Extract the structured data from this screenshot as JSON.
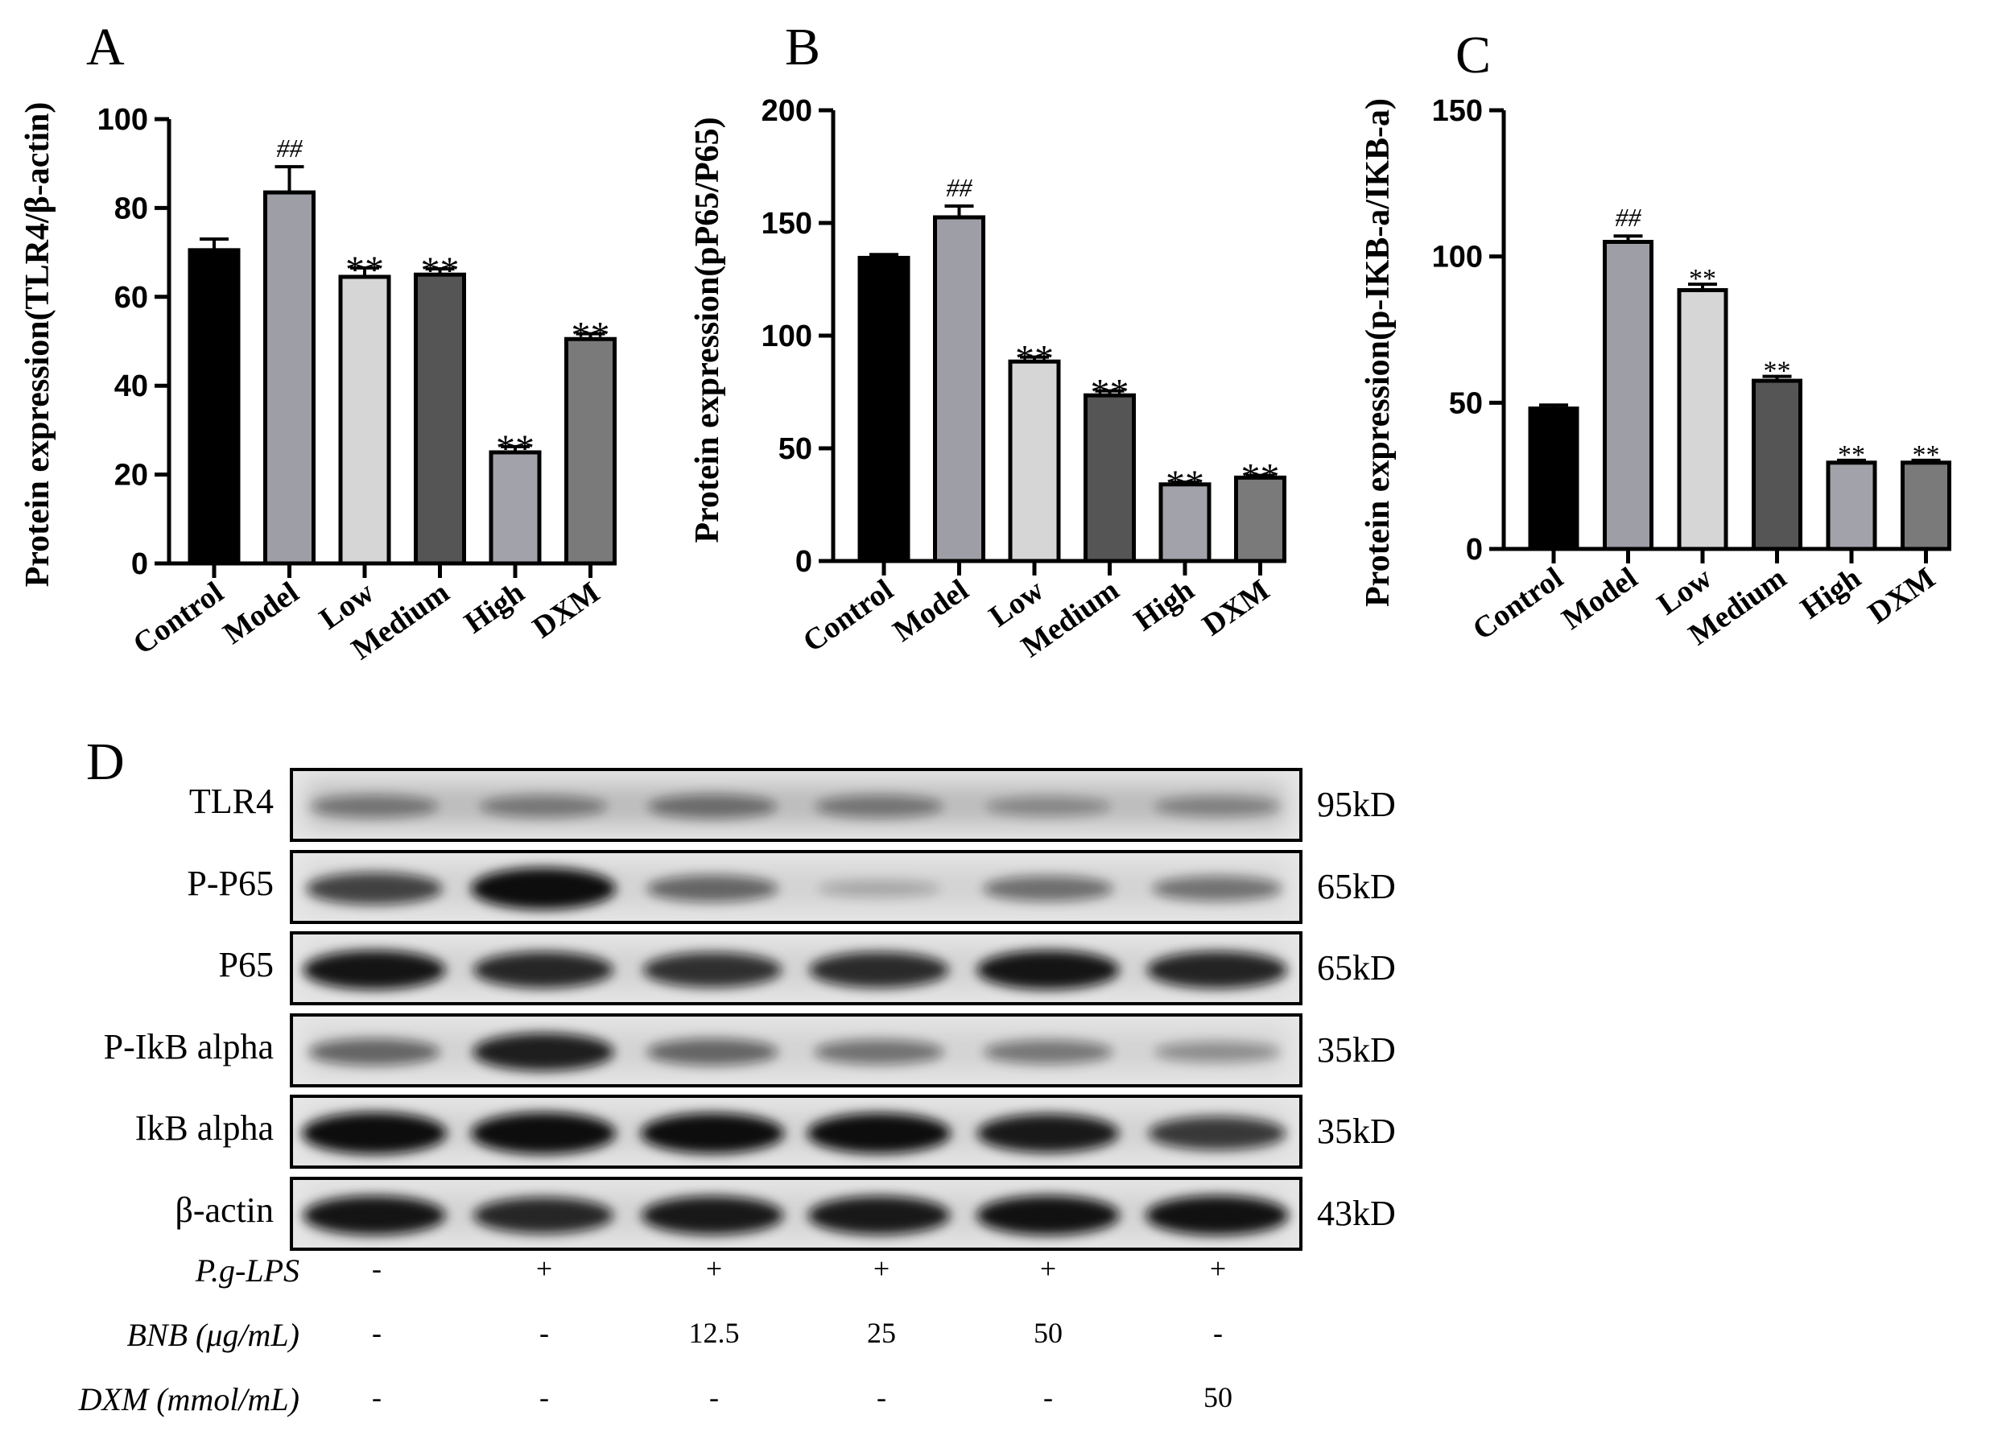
{
  "chart_data": [
    {
      "panel": "A",
      "type": "bar",
      "ylabel": "Protein expression(TLR4/β-actin)",
      "categories": [
        "Control",
        "Model",
        "Low",
        "Medium",
        "High",
        "DXM"
      ],
      "values": [
        70.5,
        83.5,
        64.5,
        65,
        25,
        50.5
      ],
      "errors": [
        2.5,
        5.8,
        2.0,
        1.3,
        1.3,
        1.2
      ],
      "annotations": [
        "",
        "##",
        "**",
        "**",
        "**",
        "**"
      ],
      "ylim": [
        0,
        100
      ],
      "yticks": [
        0,
        20,
        40,
        60,
        80,
        100
      ],
      "colors": [
        "#000000",
        "#9e9ea6",
        "#d6d6d6",
        "#555555",
        "#a2a2aa",
        "#7a7a7a"
      ]
    },
    {
      "panel": "B",
      "type": "bar",
      "ylabel": "Protein expression(pP65/P65)",
      "categories": [
        "Control",
        "Model",
        "Low",
        "Medium",
        "High",
        "DXM"
      ],
      "values": [
        134.5,
        152.5,
        88.5,
        73.5,
        34,
        37
      ],
      "errors": [
        1.5,
        5.0,
        2.0,
        2.0,
        1.0,
        1.0
      ],
      "annotations": [
        "",
        "##",
        "**",
        "**",
        "**",
        "**"
      ],
      "ylim": [
        0,
        200
      ],
      "yticks": [
        0,
        50,
        100,
        150,
        200
      ],
      "colors": [
        "#000000",
        "#9e9ea6",
        "#d6d6d6",
        "#555555",
        "#a2a2aa",
        "#7a7a7a"
      ]
    },
    {
      "panel": "C",
      "type": "bar",
      "ylabel": "Protein expression(p-IKB-a/IKB-a)",
      "categories": [
        "Control",
        "Model",
        "Low",
        "Medium",
        "High",
        "DXM"
      ],
      "values": [
        48,
        105,
        88.5,
        57.5,
        29.5,
        29.5
      ],
      "errors": [
        1.2,
        2.0,
        2.0,
        1.5,
        0.8,
        0.8
      ],
      "annotations": [
        "",
        "##",
        "**",
        "**",
        "**",
        "**"
      ],
      "ylim": [
        0,
        150
      ],
      "yticks": [
        0,
        50,
        100,
        150
      ],
      "colors": [
        "#000000",
        "#9e9ea6",
        "#d6d6d6",
        "#555555",
        "#a2a2aa",
        "#7a7a7a"
      ]
    }
  ],
  "blot": {
    "panel": "D",
    "rows": [
      {
        "label": "TLR4",
        "weight": "95kD"
      },
      {
        "label": "P-P65",
        "weight": "65kD"
      },
      {
        "label": "P65",
        "weight": "65kD"
      },
      {
        "label": "P-IkB alpha",
        "weight": "35kD"
      },
      {
        "label": "IkB alpha",
        "weight": "35kD"
      },
      {
        "label": "β-actin",
        "weight": "43kD"
      }
    ],
    "band_intensity": [
      [
        0.3,
        0.28,
        0.35,
        0.3,
        0.18,
        0.22
      ],
      [
        0.65,
        1.0,
        0.45,
        0.08,
        0.4,
        0.38
      ],
      [
        0.9,
        0.8,
        0.75,
        0.78,
        0.9,
        0.82
      ],
      [
        0.45,
        0.85,
        0.45,
        0.38,
        0.35,
        0.22
      ],
      [
        1.0,
        1.0,
        0.95,
        0.95,
        0.88,
        0.7
      ],
      [
        0.9,
        0.8,
        0.88,
        0.88,
        0.92,
        0.92
      ]
    ],
    "treatments": [
      {
        "label": "P.g-LPS",
        "values": [
          "-",
          "+",
          "+",
          "+",
          "+",
          "+"
        ]
      },
      {
        "label": "BNB (μg/mL)",
        "values": [
          "-",
          "-",
          "12.5",
          "25",
          "50",
          "-"
        ]
      },
      {
        "label": "DXM (mmol/mL)",
        "values": [
          "-",
          "-",
          "-",
          "-",
          "-",
          "50"
        ]
      }
    ]
  }
}
